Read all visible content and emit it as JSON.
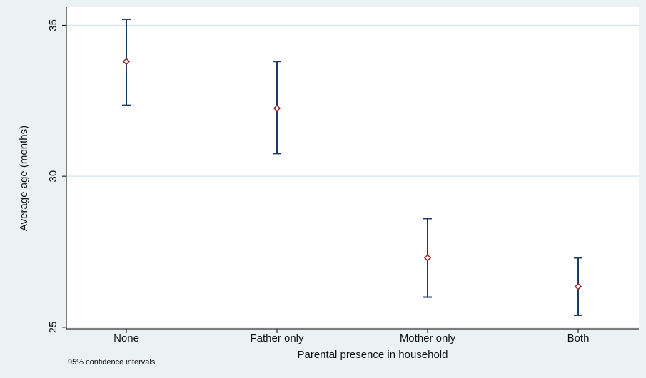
{
  "chart_data": {
    "type": "scatter",
    "subtype": "point-with-error-bars",
    "categories": [
      "None",
      "Father only",
      "Mother only",
      "Both"
    ],
    "estimates": [
      33.8,
      32.25,
      27.3,
      26.35
    ],
    "ci_lower": [
      32.35,
      30.75,
      26.0,
      25.4
    ],
    "ci_upper": [
      35.2,
      33.8,
      28.6,
      27.3
    ],
    "xlabel": "Parental presence in household",
    "ylabel": "Average age (months)",
    "yticks": [
      25,
      30,
      35
    ],
    "ylim": [
      24.95,
      35.6
    ],
    "grid": true,
    "note": "95% confidence intervals",
    "colors": {
      "background": "#eaf2f3",
      "plot_area": "#ffffff",
      "gridline": "#d9e3ef",
      "error_bar": "#1a3b66",
      "marker": "#9b2a2f"
    }
  }
}
